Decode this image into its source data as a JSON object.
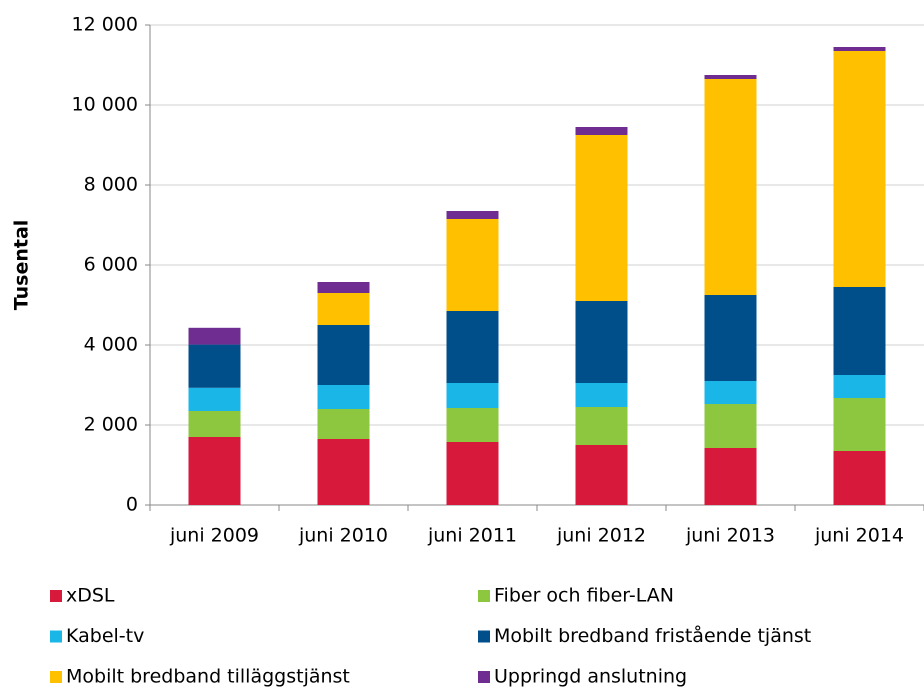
{
  "chart_data": {
    "type": "stacked_bar",
    "y_label": "Tusental",
    "categories": [
      "juni 2009",
      "juni 2010",
      "juni 2011",
      "juni 2012",
      "juni 2013",
      "juni 2014"
    ],
    "series": [
      {
        "name": "xDSL",
        "color": "#d7193c",
        "values": [
          1700,
          1650,
          1575,
          1500,
          1425,
          1350
        ]
      },
      {
        "name": "Fiber och fiber-LAN",
        "color": "#8dc63f",
        "values": [
          650,
          750,
          850,
          950,
          1100,
          1325
        ]
      },
      {
        "name": "Kabel-tv",
        "color": "#1ab6e8",
        "values": [
          580,
          600,
          625,
          600,
          575,
          575
        ]
      },
      {
        "name": "Mobilt bredband fristående tjänst",
        "color": "#004f8b",
        "values": [
          1080,
          1500,
          1800,
          2050,
          2150,
          2200
        ]
      },
      {
        "name": "Mobilt bredband tilläggstjänst",
        "color": "#ffc000",
        "values": [
          0,
          800,
          2300,
          4150,
          5400,
          5900
        ]
      },
      {
        "name": "Uppringd anslutning",
        "color": "#6f2c91",
        "values": [
          420,
          275,
          200,
          200,
          100,
          100
        ]
      }
    ],
    "ylim": [
      0,
      12000
    ],
    "yticks": [
      0,
      {
        "value": 2000,
        "label": "2 000"
      },
      {
        "value": 4000,
        "label": "4 000"
      },
      {
        "value": 6000,
        "label": "6 000"
      },
      {
        "value": 8000,
        "label": "8 000"
      },
      {
        "value": 10000,
        "label": "10 000"
      },
      {
        "value": 12000,
        "label": "12 000"
      }
    ],
    "grid": true,
    "legend": "bottom"
  }
}
